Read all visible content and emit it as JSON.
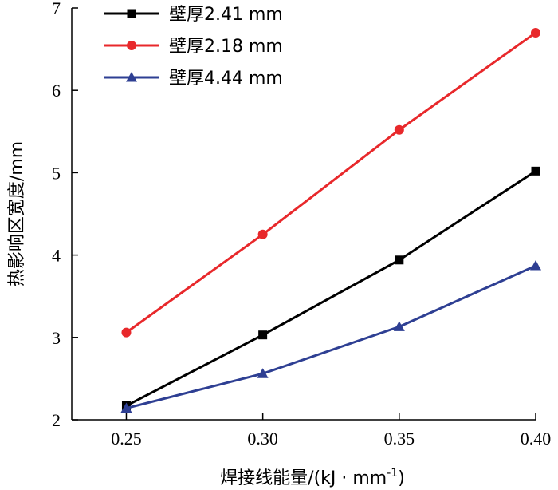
{
  "chart_data": {
    "type": "line",
    "title": "",
    "xlabel": "焊接线能量/(kJ · mm",
    "xlabel_sup": "-1",
    "xlabel_close": ")",
    "ylabel": "热影响区宽度/mm",
    "x": [
      0.25,
      0.3,
      0.35,
      0.4
    ],
    "x_tick_labels": [
      "0.25",
      "0.30",
      "0.35",
      "0.40"
    ],
    "y_ticks": [
      2,
      3,
      4,
      5,
      6,
      7
    ],
    "y_tick_labels": [
      "2",
      "3",
      "4",
      "5",
      "6",
      "7"
    ],
    "xlim": [
      0.23,
      0.4
    ],
    "ylim": [
      2,
      7
    ],
    "grid": false,
    "legend_position": "top-left",
    "series": [
      {
        "name": "壁厚2.41 mm",
        "color": "#000000",
        "marker": "square",
        "values": [
          2.17,
          3.03,
          3.94,
          5.02
        ]
      },
      {
        "name": "壁厚2.18 mm",
        "color": "#e8282b",
        "marker": "circle",
        "values": [
          3.06,
          4.25,
          5.52,
          6.7
        ]
      },
      {
        "name": "壁厚4.44 mm",
        "color": "#2e3f93",
        "marker": "triangle",
        "values": [
          2.14,
          2.56,
          3.13,
          3.87
        ]
      }
    ]
  }
}
